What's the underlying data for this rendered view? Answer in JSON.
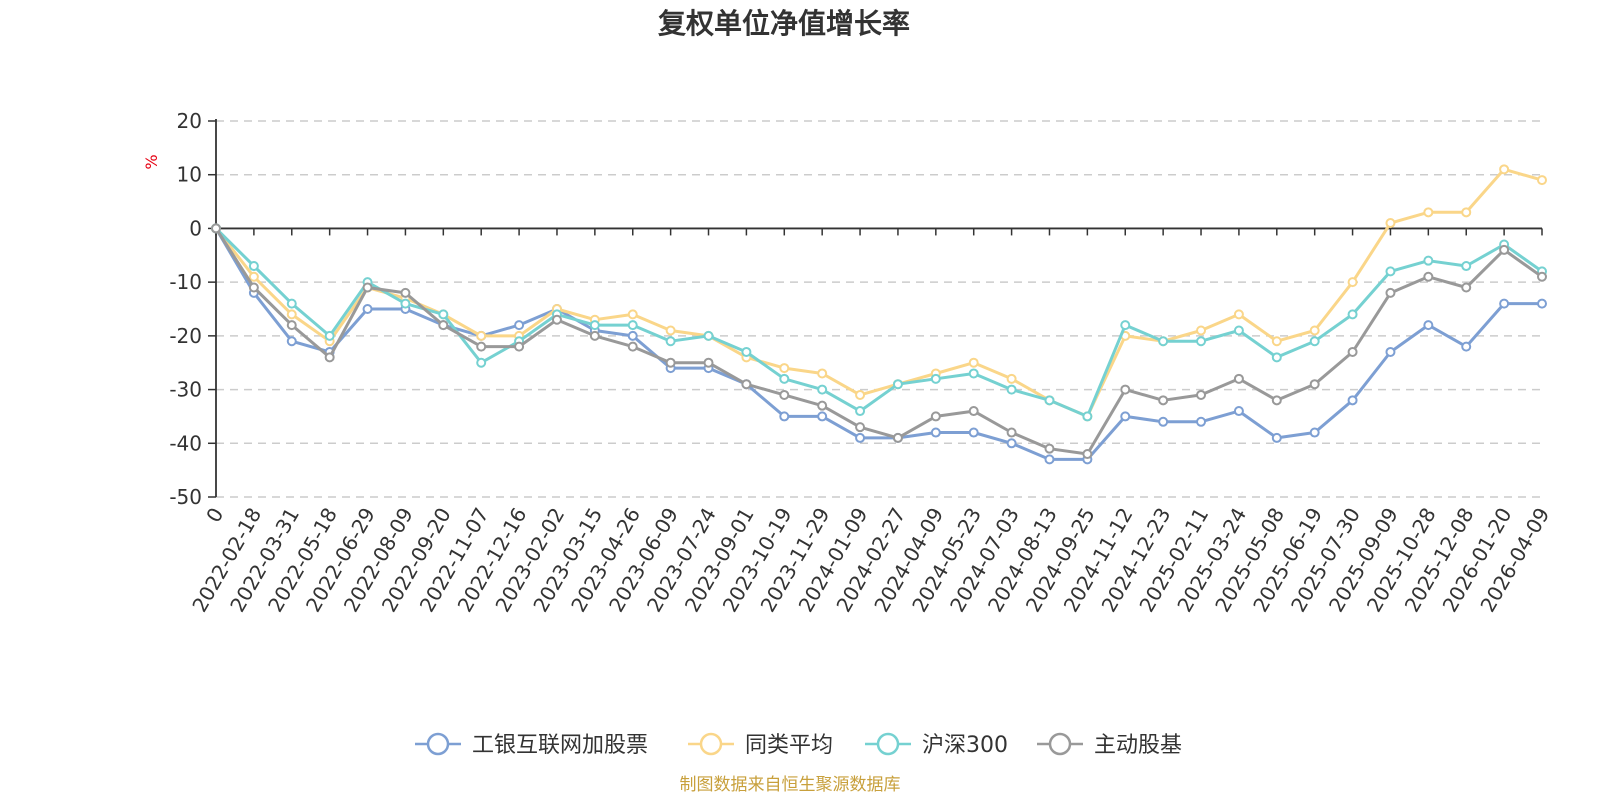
{
  "chart_data": {
    "type": "line",
    "title": "复权单位净值增长率",
    "ylabel": "%",
    "ylim": [
      -50,
      20
    ],
    "yticks": [
      20,
      10,
      0,
      -10,
      -20,
      -30,
      -40,
      -50
    ],
    "ytick_labels": [
      "20",
      "10",
      "0",
      "-10",
      "-20",
      "-30",
      "-40",
      "-50"
    ],
    "x": [
      "0",
      "2022-02-18",
      "2022-03-31",
      "2022-05-18",
      "2022-06-29",
      "2022-08-09",
      "2022-09-20",
      "2022-11-07",
      "2022-12-16",
      "2023-02-02",
      "2023-03-15",
      "2023-04-26",
      "2023-06-09",
      "2023-07-24",
      "2023-09-01",
      "2023-10-19",
      "2023-11-29",
      "2024-01-09",
      "2024-02-27",
      "2024-04-09",
      "2024-05-23",
      "2024-07-03",
      "2024-08-13",
      "2024-09-25",
      "2024-11-12",
      "2024-12-23",
      "2025-02-11",
      "2025-03-24",
      "2025-05-08",
      "2025-06-19",
      "2025-07-30",
      "2025-09-09",
      "2025-10-28",
      "2025-12-08",
      "2026-01-20",
      "2026-04-09"
    ],
    "grid": true,
    "legend_position": "bottom",
    "series": [
      {
        "name": "工银互联网加股票",
        "color": "#7d9fd3",
        "values": [
          0,
          -12,
          -21,
          -23,
          -15,
          -15,
          -18,
          -20,
          -18,
          -15,
          -19,
          -20,
          -26,
          -26,
          -29,
          -35,
          -35,
          -39,
          -39,
          -38,
          -38,
          -40,
          -43,
          -43,
          -35,
          -36,
          -36,
          -34,
          -39,
          -38,
          -32,
          -23,
          -18,
          -22,
          -14,
          -14
        ]
      },
      {
        "name": "同类平均",
        "color": "#fad689",
        "values": [
          0,
          -9,
          -16,
          -21,
          -11,
          -13,
          -16,
          -20,
          -20,
          -15,
          -17,
          -16,
          -19,
          -20,
          -24,
          -26,
          -27,
          -31,
          -29,
          -27,
          -25,
          -28,
          -32,
          -35,
          -20,
          -21,
          -19,
          -16,
          -21,
          -19,
          -10,
          1,
          3,
          3,
          11,
          9
        ]
      },
      {
        "name": "沪深300",
        "color": "#75d1d1",
        "values": [
          0,
          -7,
          -14,
          -20,
          -10,
          -14,
          -16,
          -25,
          -21,
          -16,
          -18,
          -18,
          -21,
          -20,
          -23,
          -28,
          -30,
          -34,
          -29,
          -28,
          -27,
          -30,
          -32,
          -35,
          -18,
          -21,
          -21,
          -19,
          -24,
          -21,
          -16,
          -8,
          -6,
          -7,
          -3,
          -8
        ]
      },
      {
        "name": "主动股基",
        "color": "#999999",
        "values": [
          0,
          -11,
          -18,
          -24,
          -11,
          -12,
          -18,
          -22,
          -22,
          -17,
          -20,
          -22,
          -25,
          -25,
          -29,
          -31,
          -33,
          -37,
          -39,
          -35,
          -34,
          -38,
          -41,
          -42,
          -30,
          -32,
          -31,
          -28,
          -32,
          -29,
          -23,
          -12,
          -9,
          -11,
          -4,
          -9
        ]
      }
    ],
    "source": "制图数据来自恒生聚源数据库"
  }
}
